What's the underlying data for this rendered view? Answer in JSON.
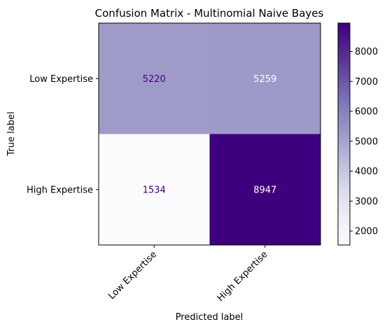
{
  "chart_data": {
    "type": "heatmap",
    "title": "Confusion Matrix - Multinomial Naive Bayes",
    "xlabel": "Predicted label",
    "ylabel": "True label",
    "x_categories": [
      "Low Expertise",
      "High Expertise"
    ],
    "y_categories": [
      "Low Expertise",
      "High Expertise"
    ],
    "values": [
      [
        5220,
        5259
      ],
      [
        1534,
        8947
      ]
    ],
    "colormap": "Purples",
    "colorbar": {
      "min": 1534,
      "max": 8947,
      "ticks": [
        "2000",
        "3000",
        "4000",
        "5000",
        "6000",
        "7000",
        "8000"
      ]
    },
    "colors": {
      "low": "#fcfbfd",
      "high": "#3f007d",
      "text_on_dark": "#ffffff",
      "text_on_light": "#3f007d"
    }
  }
}
